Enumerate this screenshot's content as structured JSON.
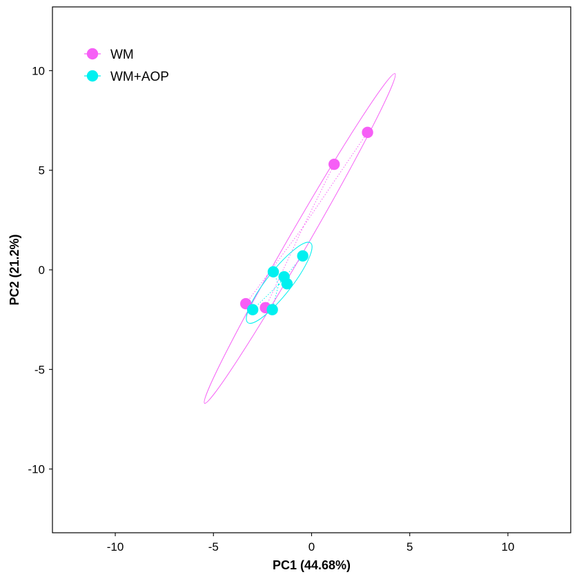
{
  "chart_data": {
    "type": "scatter",
    "title": "",
    "xlabel": "PC1 (44.68%)",
    "ylabel": "PC2 (21.2%)",
    "xlim": [
      -13.2,
      13.2
    ],
    "ylim": [
      -13.2,
      13.2
    ],
    "xticks": [
      -10,
      -5,
      0,
      5,
      10
    ],
    "yticks": [
      -10,
      -5,
      0,
      5,
      10
    ],
    "xtick_labels": [
      "-10",
      "-5",
      "0",
      "5",
      "10"
    ],
    "ytick_labels": [
      "-10",
      "-5",
      "0",
      "5",
      "10"
    ],
    "grid": false,
    "legend_position": "top-left",
    "series": [
      {
        "name": "WM",
        "color": "#f65ff6",
        "x": [
          2.85,
          1.15,
          -3.35,
          -2.35
        ],
        "y": [
          6.9,
          5.3,
          -1.7,
          -1.9
        ],
        "centroid": [
          -0.43,
          2.15
        ],
        "ellipse": {
          "center": [
            -0.5,
            1.6
          ],
          "end1": [
            4.25,
            9.85
          ],
          "end2": [
            -5.45,
            -6.7
          ],
          "semi_minor": 0.5
        }
      },
      {
        "name": "WM+AOP",
        "color": "#00f0f0",
        "x": [
          -0.45,
          -1.95,
          -1.4,
          -1.25,
          -3.0,
          -2.0
        ],
        "y": [
          0.7,
          -0.1,
          -0.35,
          -0.7,
          -2.0,
          -2.0
        ],
        "centroid": [
          -1.68,
          -0.74
        ],
        "ellipse": {
          "center": [
            -1.65,
            -0.65
          ],
          "end1": [
            -0.05,
            1.35
          ],
          "end2": [
            -3.25,
            -2.65
          ],
          "semi_minor": 0.62
        }
      }
    ]
  }
}
